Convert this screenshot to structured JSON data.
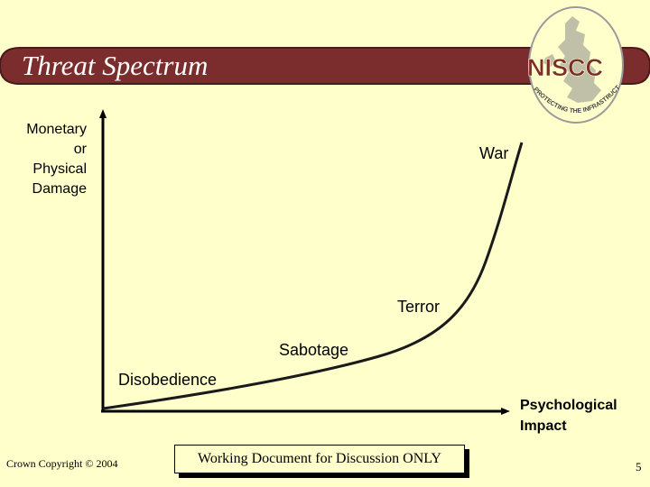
{
  "title": "Threat Spectrum",
  "logo": {
    "text": "NISCC",
    "tagline": "PROTECTING THE INFRASTRUCTURE"
  },
  "chart_data": {
    "type": "line",
    "ylabel": [
      "Monetary",
      "or",
      "Physical",
      "Damage"
    ],
    "xlabel": [
      "Psychological",
      "Impact"
    ],
    "points": [
      {
        "label": "Disobedience"
      },
      {
        "label": "Sabotage"
      },
      {
        "label": "Terror"
      },
      {
        "label": "War"
      }
    ]
  },
  "footer": {
    "copyright": "Crown Copyright © 2004",
    "notice": "Working Document for Discussion ONLY",
    "page_number": "5"
  },
  "colors": {
    "background": "#FFFFCC",
    "title_bar": "#7B2D2D",
    "axis": "#000000",
    "curve": "#1A1A1A"
  }
}
